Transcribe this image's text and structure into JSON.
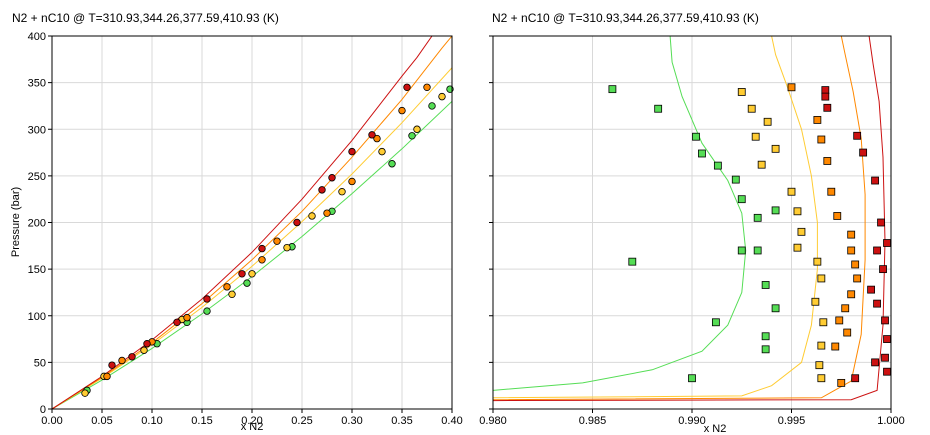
{
  "chart_data": [
    {
      "type": "scatter",
      "title": "N2 + nC10 @ T=310.93,344.26,377.59,410.93 (K)",
      "xlabel": "x N2",
      "ylabel": "Pressure (bar)",
      "xlim": [
        0.0,
        0.4
      ],
      "ylim": [
        0,
        400
      ],
      "xticks": [
        "0.00",
        "0.05",
        "0.10",
        "0.15",
        "0.20",
        "0.25",
        "0.30",
        "0.35",
        "0.40"
      ],
      "yticks": [
        "0",
        "50",
        "100",
        "150",
        "200",
        "250",
        "300",
        "350",
        "400"
      ],
      "grid": true,
      "colors": {
        "T1": "#55dd55",
        "T2": "#ffcc33",
        "T3": "#ff8800",
        "T4": "#cc1111"
      },
      "series": [
        {
          "color_key": "T1",
          "curve": [
            [
              0,
              0
            ],
            [
              0.05,
              31
            ],
            [
              0.1,
              65
            ],
            [
              0.15,
              102
            ],
            [
              0.2,
              142
            ],
            [
              0.25,
              185
            ],
            [
              0.3,
              231
            ],
            [
              0.35,
              279
            ],
            [
              0.4,
              330
            ]
          ],
          "points": [
            [
              0.035,
              20
            ],
            [
              0.105,
              70
            ],
            [
              0.135,
              93
            ],
            [
              0.155,
              105
            ],
            [
              0.195,
              135
            ],
            [
              0.24,
              174
            ],
            [
              0.28,
              212
            ],
            [
              0.34,
              263
            ],
            [
              0.36,
              293
            ],
            [
              0.38,
              325
            ],
            [
              0.398,
              343
            ]
          ]
        },
        {
          "color_key": "T2",
          "curve": [
            [
              0,
              0
            ],
            [
              0.05,
              33
            ],
            [
              0.1,
              69
            ],
            [
              0.15,
              109
            ],
            [
              0.2,
              153
            ],
            [
              0.25,
              201
            ],
            [
              0.3,
              252
            ],
            [
              0.35,
              307
            ],
            [
              0.4,
              366
            ],
            [
              0.42,
              393
            ]
          ],
          "points": [
            [
              0.033,
              17
            ],
            [
              0.052,
              35
            ],
            [
              0.092,
              63
            ],
            [
              0.13,
              96
            ],
            [
              0.18,
              123
            ],
            [
              0.2,
              145
            ],
            [
              0.235,
              173
            ],
            [
              0.26,
              207
            ],
            [
              0.29,
              233
            ],
            [
              0.33,
              276
            ],
            [
              0.365,
              300
            ],
            [
              0.39,
              335
            ]
          ]
        },
        {
          "color_key": "T3",
          "curve": [
            [
              0,
              0
            ],
            [
              0.05,
              34
            ],
            [
              0.1,
              71
            ],
            [
              0.15,
              113
            ],
            [
              0.2,
              160
            ],
            [
              0.25,
              212
            ],
            [
              0.3,
              270
            ],
            [
              0.35,
              332
            ],
            [
              0.39,
              387
            ],
            [
              0.4,
              400
            ]
          ],
          "points": [
            [
              0.055,
              35
            ],
            [
              0.07,
              52
            ],
            [
              0.1,
              72
            ],
            [
              0.135,
              98
            ],
            [
              0.175,
              131
            ],
            [
              0.21,
              160
            ],
            [
              0.225,
              180
            ],
            [
              0.275,
              210
            ],
            [
              0.3,
              244
            ],
            [
              0.325,
              290
            ],
            [
              0.35,
              320
            ],
            [
              0.375,
              345
            ]
          ]
        },
        {
          "color_key": "T4",
          "curve": [
            [
              0,
              0
            ],
            [
              0.05,
              35
            ],
            [
              0.1,
              74
            ],
            [
              0.15,
              118
            ],
            [
              0.2,
              168
            ],
            [
              0.25,
              225
            ],
            [
              0.3,
              288
            ],
            [
              0.35,
              357
            ],
            [
              0.365,
              377
            ],
            [
              0.38,
              400
            ]
          ],
          "points": [
            [
              0.06,
              47
            ],
            [
              0.08,
              56
            ],
            [
              0.095,
              70
            ],
            [
              0.125,
              93
            ],
            [
              0.155,
              118
            ],
            [
              0.19,
              145
            ],
            [
              0.21,
              172
            ],
            [
              0.245,
              200
            ],
            [
              0.27,
              235
            ],
            [
              0.28,
              248
            ],
            [
              0.3,
              276
            ],
            [
              0.32,
              294
            ],
            [
              0.355,
              345
            ]
          ]
        }
      ]
    },
    {
      "type": "scatter",
      "title": "N2 + nC10 @ T=310.93,344.26,377.59,410.93 (K)",
      "xlabel": "x N2",
      "xlim": [
        0.98,
        1.0
      ],
      "ylim": [
        0,
        400
      ],
      "xticks": [
        "0.980",
        "0.985",
        "0.990",
        "0.995",
        "1.000"
      ],
      "grid": true,
      "series": [
        {
          "color_key": "T1",
          "curve": [
            [
              0.98,
              20
            ],
            [
              0.9845,
              28
            ],
            [
              0.988,
              42
            ],
            [
              0.9905,
              62
            ],
            [
              0.9918,
              90
            ],
            [
              0.9925,
              125
            ],
            [
              0.9927,
              170
            ],
            [
              0.9925,
              210
            ],
            [
              0.9918,
              245
            ],
            [
              0.9905,
              285
            ],
            [
              0.9895,
              335
            ],
            [
              0.989,
              372
            ],
            [
              0.9889,
              400
            ]
          ],
          "points": [
            [
              0.986,
              343
            ],
            [
              0.9883,
              322
            ],
            [
              0.9902,
              292
            ],
            [
              0.9905,
              274
            ],
            [
              0.9913,
              261
            ],
            [
              0.9922,
              246
            ],
            [
              0.9925,
              225
            ],
            [
              0.9933,
              205
            ],
            [
              0.9942,
              213
            ],
            [
              0.9933,
              170
            ],
            [
              0.9925,
              170
            ],
            [
              0.9937,
              133
            ],
            [
              0.9942,
              108
            ],
            [
              0.9937,
              78
            ],
            [
              0.9937,
              64
            ],
            [
              0.9912,
              93
            ],
            [
              0.99,
              33
            ],
            [
              0.987,
              158
            ]
          ]
        },
        {
          "color_key": "T2",
          "curve": [
            [
              0.98,
              12
            ],
            [
              0.9925,
              14
            ],
            [
              0.994,
              25
            ],
            [
              0.9955,
              50
            ],
            [
              0.996,
              90
            ],
            [
              0.9963,
              150
            ],
            [
              0.9963,
              200
            ],
            [
              0.996,
              250
            ],
            [
              0.9955,
              300
            ],
            [
              0.9948,
              345
            ],
            [
              0.9942,
              380
            ],
            [
              0.994,
              400
            ]
          ],
          "points": [
            [
              0.9925,
              340
            ],
            [
              0.993,
              322
            ],
            [
              0.9938,
              308
            ],
            [
              0.9932,
              292
            ],
            [
              0.9942,
              279
            ],
            [
              0.9935,
              262
            ],
            [
              0.995,
              233
            ],
            [
              0.9953,
              212
            ],
            [
              0.9955,
              190
            ],
            [
              0.9953,
              173
            ],
            [
              0.9963,
              158
            ],
            [
              0.9965,
              140
            ],
            [
              0.9962,
              115
            ],
            [
              0.9966,
              93
            ],
            [
              0.9965,
              68
            ],
            [
              0.9964,
              47
            ],
            [
              0.9965,
              33
            ]
          ]
        },
        {
          "color_key": "T3",
          "curve": [
            [
              0.98,
              10
            ],
            [
              0.9965,
              12
            ],
            [
              0.998,
              30
            ],
            [
              0.9985,
              80
            ],
            [
              0.9987,
              160
            ],
            [
              0.9987,
              230
            ],
            [
              0.9985,
              290
            ],
            [
              0.9981,
              340
            ],
            [
              0.9977,
              380
            ],
            [
              0.9975,
              400
            ]
          ],
          "points": [
            [
              0.995,
              345
            ],
            [
              0.9963,
              310
            ],
            [
              0.9965,
              289
            ],
            [
              0.9968,
              266
            ],
            [
              0.997,
              233
            ],
            [
              0.9973,
              207
            ],
            [
              0.998,
              187
            ],
            [
              0.998,
              170
            ],
            [
              0.9982,
              155
            ],
            [
              0.9983,
              140
            ],
            [
              0.998,
              123
            ],
            [
              0.9977,
              108
            ],
            [
              0.9974,
              95
            ],
            [
              0.9978,
              82
            ],
            [
              0.9972,
              67
            ],
            [
              0.9975,
              28
            ]
          ]
        },
        {
          "color_key": "T4",
          "curve": [
            [
              0.98,
              9
            ],
            [
              0.998,
              10
            ],
            [
              0.9993,
              20
            ],
            [
              0.9996,
              90
            ],
            [
              0.9997,
              180
            ],
            [
              0.9996,
              270
            ],
            [
              0.9994,
              330
            ],
            [
              0.9991,
              370
            ],
            [
              0.9989,
              400
            ]
          ],
          "points": [
            [
              0.9967,
              342
            ],
            [
              0.9967,
              335
            ],
            [
              0.9968,
              323
            ],
            [
              0.9983,
              293
            ],
            [
              0.9986,
              275
            ],
            [
              0.9992,
              245
            ],
            [
              0.9995,
              200
            ],
            [
              0.9998,
              178
            ],
            [
              0.9993,
              170
            ],
            [
              0.9996,
              150
            ],
            [
              0.999,
              128
            ],
            [
              0.9993,
              113
            ],
            [
              0.9997,
              95
            ],
            [
              0.9998,
              75
            ],
            [
              0.9997,
              55
            ],
            [
              0.9992,
              50
            ],
            [
              0.9998,
              40
            ],
            [
              0.9982,
              33
            ]
          ]
        }
      ]
    }
  ]
}
